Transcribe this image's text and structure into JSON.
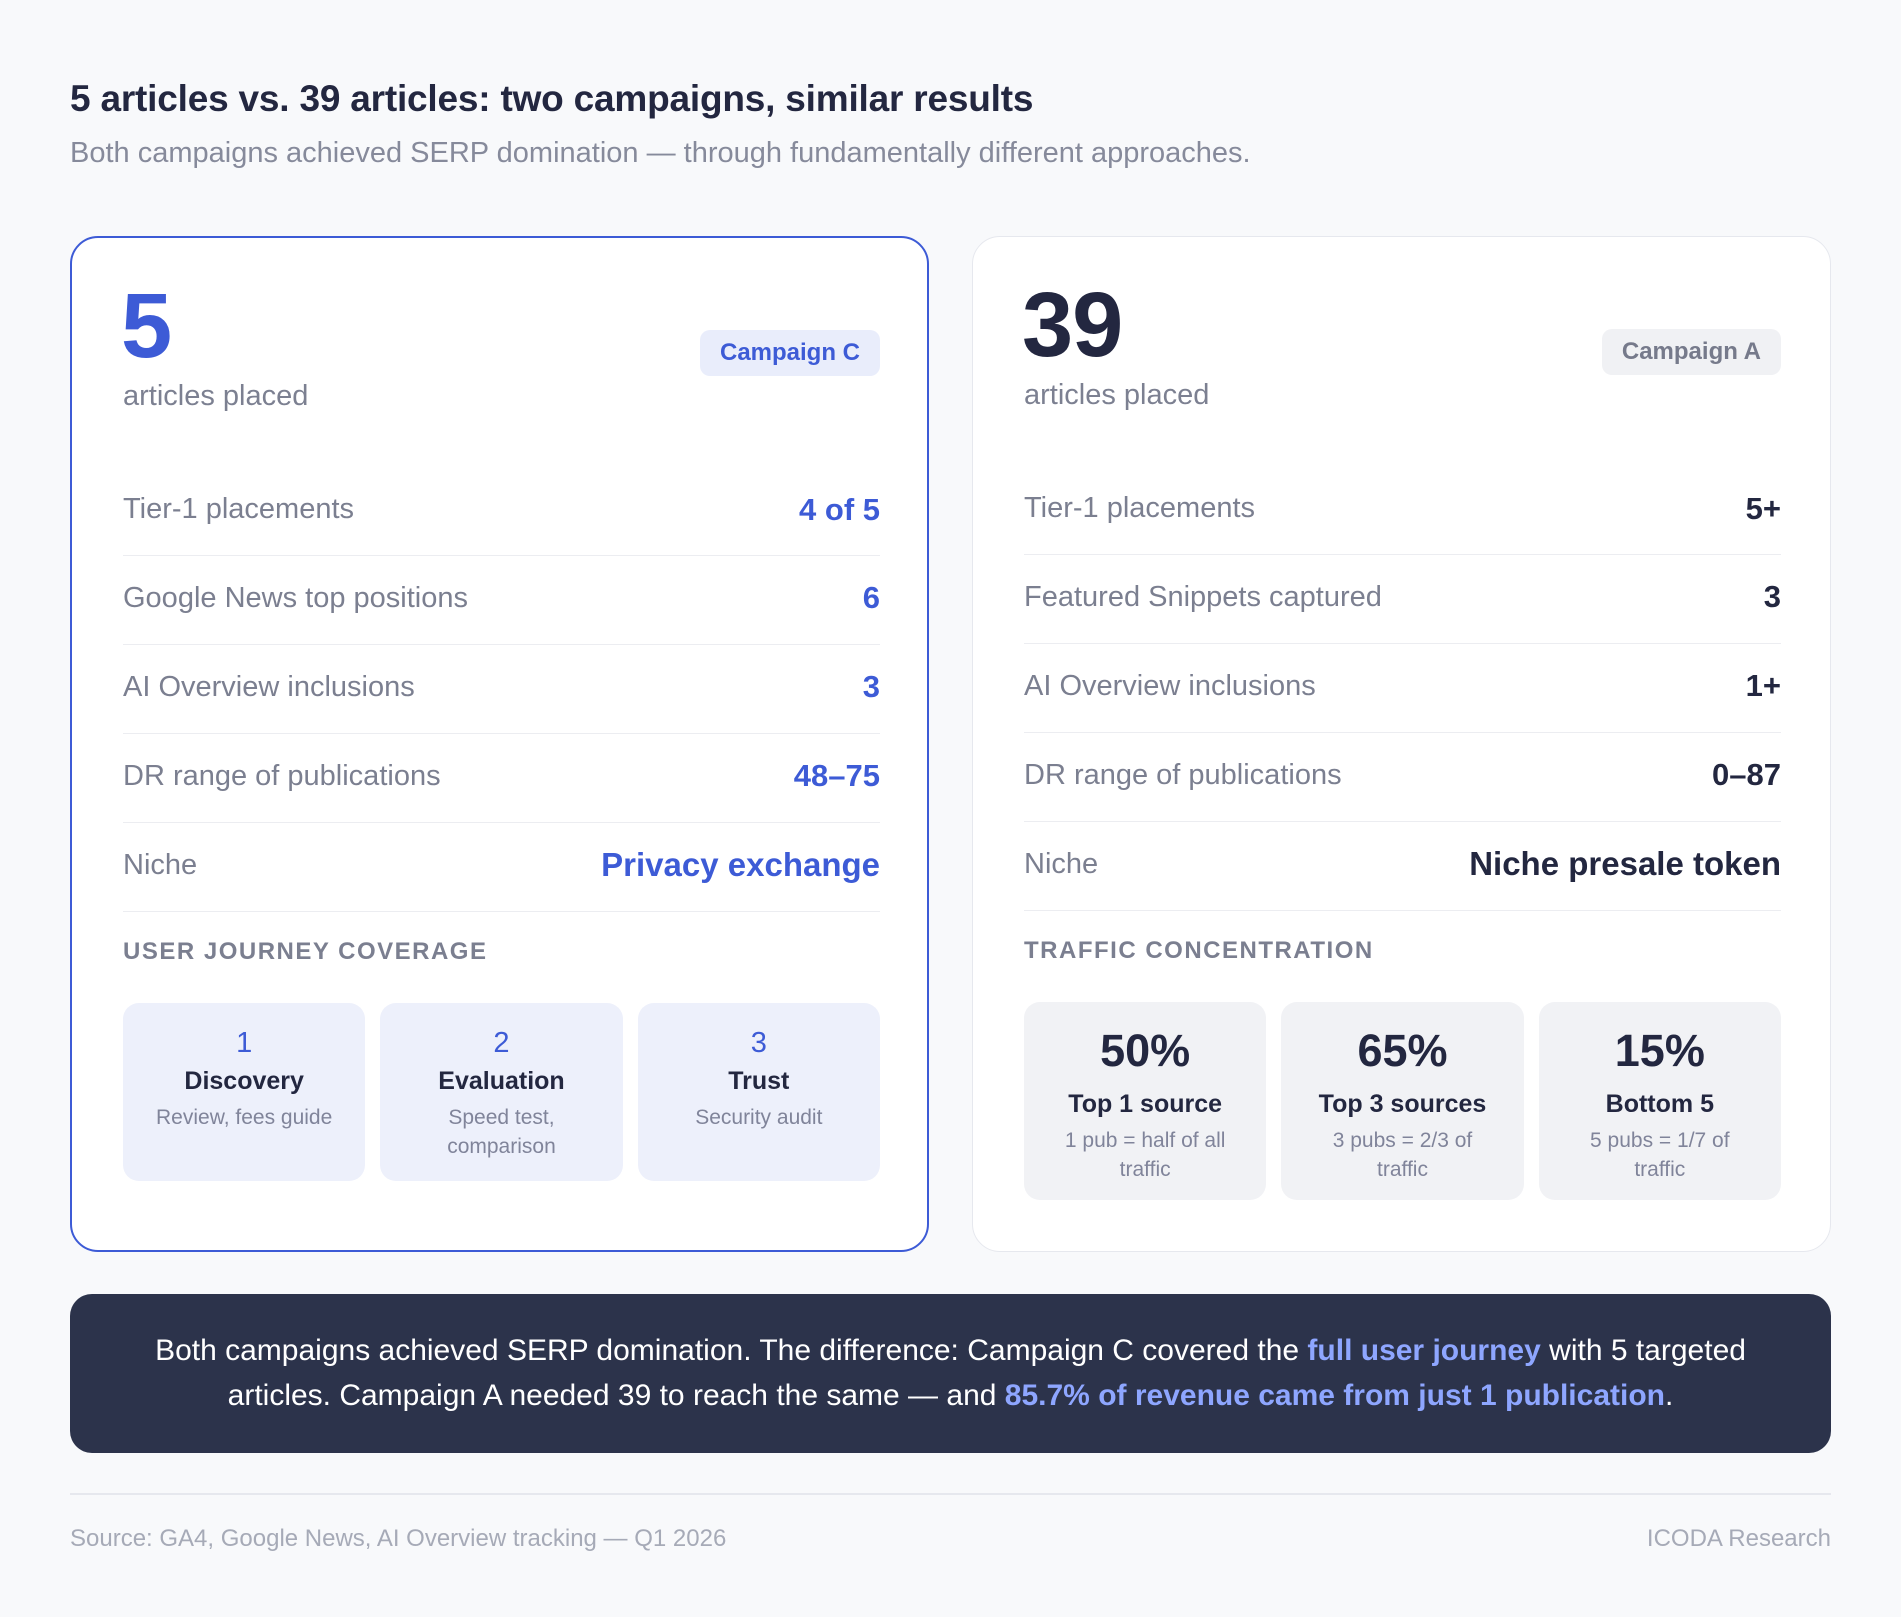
{
  "header": {
    "title": "5 articles vs. 39 articles: two campaigns, similar results",
    "subtitle": "Both campaigns achieved SERP domination — through fundamentally different approaches."
  },
  "campaign_c": {
    "count": "5",
    "count_label": "articles placed",
    "badge": "Campaign C",
    "accent_color": "#3d5bd6",
    "rows": [
      {
        "label": "Tier-1 placements",
        "value": "4 of 5"
      },
      {
        "label": "Google News top positions",
        "value": "6"
      },
      {
        "label": "AI Overview inclusions",
        "value": "3"
      },
      {
        "label": "DR range of publications",
        "value": "48–75"
      },
      {
        "label": "Niche",
        "value": "Privacy exchange"
      }
    ],
    "section_label": "USER JOURNEY COVERAGE",
    "steps": [
      {
        "num": "1",
        "title": "Discovery",
        "desc": "Review, fees guide"
      },
      {
        "num": "2",
        "title": "Evaluation",
        "desc": "Speed test, comparison"
      },
      {
        "num": "3",
        "title": "Trust",
        "desc": "Security audit"
      }
    ]
  },
  "campaign_a": {
    "count": "39",
    "count_label": "articles placed",
    "badge": "Campaign A",
    "rows": [
      {
        "label": "Tier-1 placements",
        "value": "5+"
      },
      {
        "label": "Featured Snippets captured",
        "value": "3"
      },
      {
        "label": "AI Overview inclusions",
        "value": "1+"
      },
      {
        "label": "DR range of publications",
        "value": "0–87"
      },
      {
        "label": "Niche",
        "value": "Niche presale token"
      }
    ],
    "section_label": "TRAFFIC CONCENTRATION",
    "stats": [
      {
        "value": "50%",
        "title": "Top 1 source",
        "desc": "1 pub = half of all traffic"
      },
      {
        "value": "65%",
        "title": "Top 3 sources",
        "desc": "3 pubs = 2/3 of traffic"
      },
      {
        "value": "15%",
        "title": "Bottom 5",
        "desc": "5 pubs = 1/7 of traffic"
      }
    ]
  },
  "summary": {
    "part1": "Both campaigns achieved SERP domination. The difference: Campaign C covered the ",
    "highlight1": "full user journey",
    "part2": " with 5 targeted articles. Campaign A needed 39 to reach the same — and ",
    "highlight2": "85.7% of revenue came from just 1 publication",
    "part3": "."
  },
  "footer": {
    "source": "Source: GA4, Google News, AI Overview tracking — Q1 2026",
    "brand": "ICODA Research"
  }
}
